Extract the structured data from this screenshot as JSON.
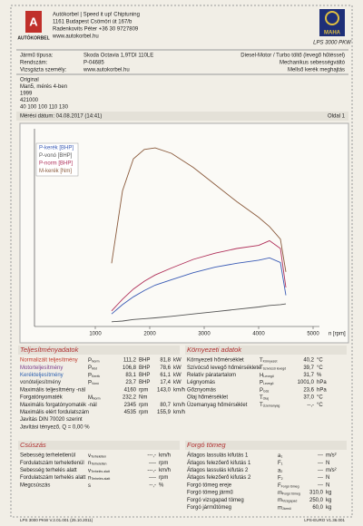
{
  "header": {
    "logo_text": "AUTÓKORBEL",
    "lines": [
      "Autókorbel | Speed it up! Chiptuning",
      "1161 Budapest Csömöri út 167/b",
      "Radenkovits Péter +36 30 9727809",
      "www.autokorbel.hu"
    ],
    "maha": "MAHA",
    "model": "LPS 3000 PKW"
  },
  "vehicle": {
    "rows": [
      [
        "Jármű típusa:",
        "Skoda Octavia 1,9TDI 110LE"
      ],
      [
        "Rendszám:",
        "P-04685"
      ],
      [
        "Vizsgázta személy:",
        "www.autokorbel.hu"
      ]
    ],
    "engine": [
      "Diesel-Motor / Turbo töltő (levegő hűtéssel)",
      "Mechanikus sebességváltó",
      "Mellső kerék meghajtás"
    ]
  },
  "info": [
    "Original",
    "Man5, mérés 4-ben",
    "1999",
    "421000",
    "40 100 100 110 130"
  ],
  "date": "Mérési dátum: 04.08.2017 (14:41)",
  "page": "Oldal 1",
  "chart_data": {
    "type": "line",
    "x_label": "n [rpm]",
    "xlim": [
      0,
      5000
    ],
    "xticks": [
      1000,
      2000,
      3000,
      4000,
      5000
    ],
    "ylim": [
      0,
      250
    ],
    "x": [
      1300,
      1500,
      1700,
      1900,
      2100,
      2400,
      2800,
      3200,
      3600,
      4000,
      4200,
      4400,
      4500
    ],
    "series": [
      {
        "name": "P-kerék [BHP]",
        "color": "#3a5bb5",
        "values": [
          16,
          28,
          38,
          46,
          53,
          60,
          69,
          76,
          81,
          85,
          88,
          82,
          40
        ]
      },
      {
        "name": "P-vonó [BHP]",
        "color": "#555555",
        "values": [
          6,
          7,
          9,
          10,
          11,
          13,
          16,
          19,
          22,
          25,
          27,
          28,
          29
        ]
      },
      {
        "name": "P-norm [BHP]",
        "color": "#b0305a",
        "values": [
          20,
          35,
          48,
          58,
          66,
          75,
          86,
          94,
          100,
          104,
          110,
          100,
          50
        ]
      },
      {
        "name": "M-kerék [Nm]",
        "color": "#8a5a3c",
        "values": [
          81,
          174,
          215,
          227,
          229,
          222,
          204,
          182,
          160,
          140,
          128,
          112,
          70
        ]
      }
    ]
  },
  "perf": {
    "title": "Teljesítményadatok",
    "rows": [
      {
        "label": "Normalizált teljesítmény",
        "sym": "P",
        "sub": "Norm",
        "value": "111,2",
        "unit": "BHP",
        "value2": "81,8",
        "unit2": "kW",
        "color": "#c0392b"
      },
      {
        "label": "Motorteljesítmény",
        "sym": "P",
        "sub": "Mot",
        "value": "106,8",
        "unit": "BHP",
        "value2": "78,6",
        "unit2": "kW",
        "color": "#7a3d8c"
      },
      {
        "label": "Kerékteljesítmény",
        "sym": "P",
        "sub": "Kerék",
        "value": "83,1",
        "unit": "BHP",
        "value2": "61,1",
        "unit2": "kW",
        "color": "#2b5fb0"
      },
      {
        "label": "vonóteljesítmény",
        "sym": "P",
        "sub": "Vonó",
        "value": "23,7",
        "unit": "BHP",
        "value2": "17,4",
        "unit2": "kW",
        "color": "#333333"
      },
      {
        "label": "Maximális teljesítmény -nál",
        "value": "4160",
        "unit": "rpm",
        "value2": "143,0",
        "unit2": "km/h"
      },
      {
        "label": "Forgatónyomaték",
        "sym": "M",
        "sub": "Norm",
        "value": "232,2",
        "unit": "Nm"
      },
      {
        "label": "Maximális forgatónyomaték -nál",
        "value": "2345",
        "unit": "rpm",
        "value2": "80,7",
        "unit2": "km/h"
      },
      {
        "label": "Maximális elért fordulatszám",
        "value": "4535",
        "unit": "rpm",
        "value2": "155,9",
        "unit2": "km/h"
      },
      {
        "label": "Javítás DIN 70020 szerint"
      },
      {
        "label": "Javítási tényező, Q  = 0,00 %"
      }
    ]
  },
  "env": {
    "title": "Környezeti adatok",
    "rows": [
      {
        "label": "Környezeti hőmérséklet",
        "sym": "T",
        "sub": "Környezet",
        "value": "40,2",
        "unit": "°C"
      },
      {
        "label": "Szívócső levegő hőmérséklete",
        "sym": "T",
        "sub": "Szívócső levegő",
        "value": "39,7",
        "unit": "°C"
      },
      {
        "label": "Relatív páratartalom",
        "sym": "H",
        "sub": "Levegő",
        "value": "31,7",
        "unit": "%"
      },
      {
        "label": "Légnyomás",
        "sym": "P",
        "sub": "Levegő",
        "value": "1001,0",
        "unit": "hPa"
      },
      {
        "label": "Gőznyomás",
        "sym": "P",
        "sub": "Gőz",
        "value": "23,6",
        "unit": "hPa"
      },
      {
        "label": "Olaj hőmérséklet",
        "sym": "T",
        "sub": "Olaj",
        "value": "37,0",
        "unit": "°C"
      },
      {
        "label": "Üzemanyag hőmérséklet",
        "sym": "T",
        "sub": "Üzemanyag",
        "value": "--,-",
        "unit": "°C"
      }
    ]
  },
  "slip": {
    "title": "Csúszás",
    "rows": [
      {
        "label": "Sebesség terheletlenül",
        "sym": "v",
        "sub": "Terheletlen",
        "value": "---,-",
        "unit": "km/h"
      },
      {
        "label": "Fordulatszám terheletlenül",
        "sym": "n",
        "sub": "Terheletlen",
        "value": "----",
        "unit": "rpm"
      },
      {
        "label": "Sebesség terhelés alatt",
        "sym": "v",
        "sub": "Terhelés alatt",
        "value": "---,-",
        "unit": "km/h"
      },
      {
        "label": "Fordulatszám terhelés alatt",
        "sym": "n",
        "sub": "Terhelés alatt",
        "value": "----",
        "unit": "rpm"
      },
      {
        "label": "Megcsúszás",
        "sym": "s",
        "value": "--,-",
        "unit": "%"
      }
    ]
  },
  "mass": {
    "title": "Forgó tömeg",
    "rows": [
      {
        "label": "Átlagos lassulás kifutás 1",
        "sym": "a",
        "sub": "1",
        "value": "---",
        "unit": "m/s²"
      },
      {
        "label": "Átlagos felezőerő kifutás 1",
        "sym": "F",
        "sub": "1",
        "value": "---",
        "unit": "N"
      },
      {
        "label": "Átlagos lassulás kifutás 2",
        "sym": "a",
        "sub": "2",
        "value": "---",
        "unit": "m/s²"
      },
      {
        "label": "Átlagos felezőerő kifutás 2",
        "sym": "F",
        "sub": "2",
        "value": "---",
        "unit": "N"
      },
      {
        "label": "Forgó tömeg ereje",
        "sym": "F",
        "sub": "Forgó tömeg",
        "value": "---",
        "unit": "N"
      },
      {
        "label": "Forgó tömeg jármű",
        "sym": "m",
        "sub": "Forgó tömeg",
        "value": "310,0",
        "unit": "kg"
      },
      {
        "label": "Forgó vizsgapad tömeg",
        "sym": "m",
        "sub": "Vizsgapad",
        "value": "250,0",
        "unit": "kg"
      },
      {
        "label": "Forgó járműtömeg",
        "sym": "m",
        "sub": "Jármű",
        "value": "60,0",
        "unit": "kg"
      }
    ]
  },
  "footer": [
    "LPS 3000 PKW V.2.01.001 (25.10.2011)",
    "LPS-EURO V1.36.001"
  ]
}
